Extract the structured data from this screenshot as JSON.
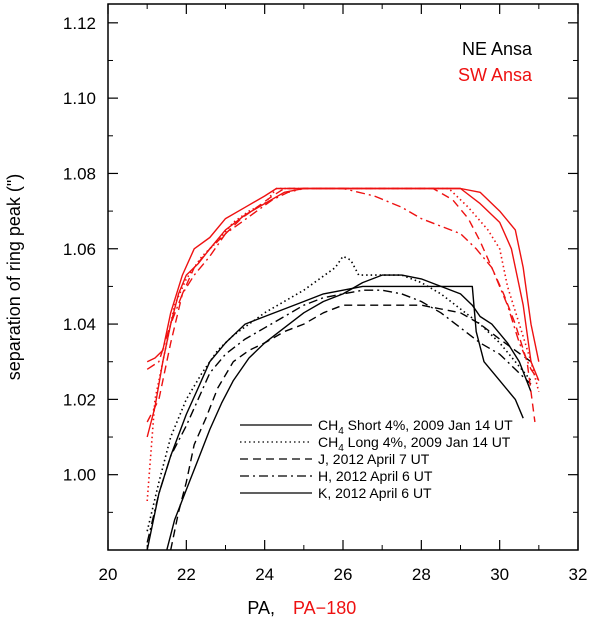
{
  "chart_data": {
    "type": "line",
    "xlabel": "PA,",
    "xlabel_red": "PA−180",
    "ylabel": "separation of ring peak (\")",
    "xlim": [
      20,
      32
    ],
    "ylim": [
      0.98,
      1.125
    ],
    "x_ticks": [
      20,
      22,
      24,
      26,
      28,
      30,
      32
    ],
    "y_ticks": [
      1.0,
      1.02,
      1.04,
      1.06,
      1.08,
      1.1,
      1.12
    ],
    "x_tick_labels": [
      "20",
      "22",
      "24",
      "26",
      "28",
      "30",
      "32"
    ],
    "y_tick_labels": [
      "1.00",
      "1.02",
      "1.04",
      "1.06",
      "1.08",
      "1.10",
      "1.12"
    ],
    "grid": false,
    "ansa_labels": [
      {
        "text": "NE Ansa",
        "color": "#000000"
      },
      {
        "text": "SW Ansa",
        "color": "#ee1111"
      }
    ],
    "legend": {
      "placement": "bottom-right",
      "entries": [
        {
          "main": "CH",
          "sub": "4",
          "rest": " Short 4%, 2009 Jan 14 UT",
          "dash": "solid"
        },
        {
          "main": "CH",
          "sub": "4",
          "rest": " Long 4%, 2009 Jan 14 UT",
          "dash": "dotted"
        },
        {
          "main": "J, 2012 April 7 UT",
          "sub": "",
          "rest": "",
          "dash": "dashed"
        },
        {
          "main": "H, 2012 April 6 UT",
          "sub": "",
          "rest": "",
          "dash": "dashdot"
        },
        {
          "main": "K, 2012 April 6 UT",
          "sub": "",
          "rest": "",
          "dash": "solid"
        }
      ]
    },
    "series": [
      {
        "ansa": "NE",
        "color": "#000000",
        "dash": "solid",
        "points": [
          [
            21.0,
            0.98
          ],
          [
            21.3,
            0.995
          ],
          [
            21.6,
            1.005
          ],
          [
            22.0,
            1.016
          ],
          [
            22.3,
            1.023
          ],
          [
            22.6,
            1.03
          ],
          [
            23.0,
            1.035
          ],
          [
            23.5,
            1.04
          ],
          [
            24.0,
            1.042
          ],
          [
            24.5,
            1.044
          ],
          [
            25.0,
            1.046
          ],
          [
            25.5,
            1.048
          ],
          [
            26.0,
            1.049
          ],
          [
            26.5,
            1.05
          ],
          [
            27.0,
            1.05
          ],
          [
            27.5,
            1.05
          ],
          [
            28.0,
            1.05
          ],
          [
            28.5,
            1.05
          ],
          [
            29.0,
            1.05
          ],
          [
            29.3,
            1.05
          ],
          [
            29.4,
            1.038
          ],
          [
            29.6,
            1.03
          ],
          [
            30.0,
            1.025
          ],
          [
            30.4,
            1.02
          ],
          [
            30.6,
            1.015
          ]
        ]
      },
      {
        "ansa": "NE",
        "color": "#000000",
        "dash": "dotted",
        "points": [
          [
            21.0,
            0.985
          ],
          [
            21.3,
            0.998
          ],
          [
            21.6,
            1.01
          ],
          [
            22.0,
            1.02
          ],
          [
            22.4,
            1.027
          ],
          [
            22.8,
            1.033
          ],
          [
            23.2,
            1.037
          ],
          [
            23.6,
            1.04
          ],
          [
            24.0,
            1.043
          ],
          [
            24.5,
            1.046
          ],
          [
            25.0,
            1.049
          ],
          [
            25.4,
            1.052
          ],
          [
            25.8,
            1.055
          ],
          [
            26.0,
            1.058
          ],
          [
            26.2,
            1.057
          ],
          [
            26.4,
            1.053
          ],
          [
            26.8,
            1.053
          ],
          [
            27.5,
            1.053
          ],
          [
            28.0,
            1.051
          ],
          [
            28.5,
            1.048
          ],
          [
            29.0,
            1.044
          ],
          [
            29.5,
            1.04
          ],
          [
            30.0,
            1.035
          ],
          [
            30.4,
            1.03
          ],
          [
            30.8,
            1.025
          ]
        ]
      },
      {
        "ansa": "NE",
        "color": "#000000",
        "dash": "dashed",
        "points": [
          [
            21.6,
            0.98
          ],
          [
            21.8,
            0.99
          ],
          [
            22.0,
            0.998
          ],
          [
            22.2,
            1.008
          ],
          [
            22.5,
            1.015
          ],
          [
            22.8,
            1.023
          ],
          [
            23.2,
            1.03
          ],
          [
            23.6,
            1.033
          ],
          [
            24.0,
            1.035
          ],
          [
            24.5,
            1.038
          ],
          [
            25.0,
            1.04
          ],
          [
            25.5,
            1.043
          ],
          [
            26.0,
            1.045
          ],
          [
            26.5,
            1.045
          ],
          [
            27.0,
            1.045
          ],
          [
            27.5,
            1.045
          ],
          [
            28.0,
            1.045
          ],
          [
            28.5,
            1.044
          ],
          [
            29.0,
            1.043
          ],
          [
            29.5,
            1.04
          ],
          [
            30.0,
            1.036
          ],
          [
            30.4,
            1.033
          ],
          [
            30.8,
            1.03
          ]
        ]
      },
      {
        "ansa": "NE",
        "color": "#000000",
        "dash": "dashdot",
        "points": [
          [
            21.0,
            0.982
          ],
          [
            21.3,
            0.995
          ],
          [
            21.6,
            1.005
          ],
          [
            22.0,
            1.013
          ],
          [
            22.3,
            1.02
          ],
          [
            22.6,
            1.027
          ],
          [
            23.0,
            1.032
          ],
          [
            23.5,
            1.036
          ],
          [
            24.0,
            1.039
          ],
          [
            24.5,
            1.042
          ],
          [
            25.0,
            1.045
          ],
          [
            25.5,
            1.047
          ],
          [
            26.0,
            1.048
          ],
          [
            26.5,
            1.049
          ],
          [
            27.0,
            1.049
          ],
          [
            27.5,
            1.048
          ],
          [
            28.0,
            1.046
          ],
          [
            28.5,
            1.043
          ],
          [
            29.0,
            1.039
          ],
          [
            29.5,
            1.035
          ],
          [
            30.0,
            1.032
          ],
          [
            30.4,
            1.028
          ],
          [
            30.8,
            1.024
          ]
        ]
      },
      {
        "ansa": "NE",
        "color": "#000000",
        "dash": "solid",
        "points": [
          [
            21.5,
            0.98
          ],
          [
            21.7,
            0.988
          ],
          [
            22.0,
            0.996
          ],
          [
            22.3,
            1.004
          ],
          [
            22.6,
            1.012
          ],
          [
            22.9,
            1.019
          ],
          [
            23.2,
            1.025
          ],
          [
            23.6,
            1.031
          ],
          [
            24.0,
            1.035
          ],
          [
            24.5,
            1.039
          ],
          [
            25.0,
            1.043
          ],
          [
            25.5,
            1.046
          ],
          [
            26.0,
            1.048
          ],
          [
            26.5,
            1.051
          ],
          [
            27.0,
            1.053
          ],
          [
            27.5,
            1.053
          ],
          [
            28.0,
            1.052
          ],
          [
            28.5,
            1.05
          ],
          [
            29.0,
            1.048
          ],
          [
            29.3,
            1.045
          ],
          [
            29.5,
            1.042
          ],
          [
            29.8,
            1.04
          ],
          [
            30.2,
            1.035
          ],
          [
            30.5,
            1.03
          ],
          [
            30.8,
            1.022
          ]
        ]
      },
      {
        "ansa": "SW",
        "color": "#ee1111",
        "dash": "solid",
        "points": [
          [
            21.0,
            1.03
          ],
          [
            21.2,
            1.031
          ],
          [
            21.4,
            1.033
          ],
          [
            21.6,
            1.043
          ],
          [
            21.9,
            1.053
          ],
          [
            22.2,
            1.06
          ],
          [
            22.6,
            1.063
          ],
          [
            23.0,
            1.068
          ],
          [
            23.5,
            1.071
          ],
          [
            24.0,
            1.074
          ],
          [
            24.3,
            1.076
          ],
          [
            26.0,
            1.076
          ],
          [
            28.0,
            1.076
          ],
          [
            29.0,
            1.076
          ],
          [
            29.5,
            1.072
          ],
          [
            30.0,
            1.067
          ],
          [
            30.3,
            1.06
          ],
          [
            30.5,
            1.05
          ],
          [
            30.6,
            1.045
          ],
          [
            30.8,
            1.03
          ],
          [
            31.0,
            1.025
          ]
        ]
      },
      {
        "ansa": "SW",
        "color": "#ee1111",
        "dash": "dotted",
        "points": [
          [
            21.0,
            0.993
          ],
          [
            21.2,
            1.02
          ],
          [
            21.4,
            1.03
          ],
          [
            21.7,
            1.045
          ],
          [
            22.0,
            1.052
          ],
          [
            22.4,
            1.058
          ],
          [
            22.8,
            1.062
          ],
          [
            23.2,
            1.067
          ],
          [
            23.6,
            1.07
          ],
          [
            24.0,
            1.072
          ],
          [
            24.3,
            1.076
          ],
          [
            26.0,
            1.076
          ],
          [
            28.0,
            1.076
          ],
          [
            28.7,
            1.076
          ],
          [
            29.2,
            1.071
          ],
          [
            29.7,
            1.065
          ],
          [
            30.0,
            1.06
          ],
          [
            30.2,
            1.05
          ],
          [
            30.5,
            1.04
          ],
          [
            30.8,
            1.03
          ],
          [
            31.0,
            1.022
          ]
        ]
      },
      {
        "ansa": "SW",
        "color": "#ee1111",
        "dash": "dashed",
        "points": [
          [
            21.0,
            1.014
          ],
          [
            21.3,
            1.02
          ],
          [
            21.6,
            1.035
          ],
          [
            21.9,
            1.048
          ],
          [
            22.2,
            1.055
          ],
          [
            22.6,
            1.06
          ],
          [
            23.0,
            1.064
          ],
          [
            23.4,
            1.068
          ],
          [
            23.8,
            1.071
          ],
          [
            24.2,
            1.074
          ],
          [
            24.5,
            1.076
          ],
          [
            26.0,
            1.076
          ],
          [
            27.5,
            1.076
          ],
          [
            28.3,
            1.076
          ],
          [
            28.8,
            1.073
          ],
          [
            29.2,
            1.068
          ],
          [
            29.5,
            1.062
          ],
          [
            29.8,
            1.055
          ],
          [
            30.1,
            1.048
          ],
          [
            30.4,
            1.04
          ],
          [
            30.7,
            1.03
          ],
          [
            30.9,
            1.014
          ]
        ]
      },
      {
        "ansa": "SW",
        "color": "#ee1111",
        "dash": "dashdot",
        "points": [
          [
            21.0,
            1.028
          ],
          [
            21.3,
            1.03
          ],
          [
            21.6,
            1.04
          ],
          [
            21.9,
            1.048
          ],
          [
            22.2,
            1.053
          ],
          [
            22.6,
            1.058
          ],
          [
            23.0,
            1.064
          ],
          [
            23.4,
            1.067
          ],
          [
            23.8,
            1.07
          ],
          [
            24.2,
            1.073
          ],
          [
            24.6,
            1.075
          ],
          [
            25.0,
            1.076
          ],
          [
            26.0,
            1.076
          ],
          [
            26.8,
            1.074
          ],
          [
            27.5,
            1.071
          ],
          [
            28.0,
            1.068
          ],
          [
            28.5,
            1.066
          ],
          [
            29.0,
            1.064
          ],
          [
            29.4,
            1.06
          ],
          [
            29.8,
            1.055
          ],
          [
            30.2,
            1.045
          ],
          [
            30.5,
            1.035
          ],
          [
            30.8,
            1.028
          ],
          [
            31.0,
            1.025
          ]
        ]
      },
      {
        "ansa": "SW",
        "color": "#ee1111",
        "dash": "solid",
        "points": [
          [
            21.0,
            1.01
          ],
          [
            21.2,
            1.018
          ],
          [
            21.4,
            1.03
          ],
          [
            21.6,
            1.04
          ],
          [
            21.8,
            1.048
          ],
          [
            22.0,
            1.053
          ],
          [
            22.3,
            1.056
          ],
          [
            22.6,
            1.06
          ],
          [
            23.0,
            1.065
          ],
          [
            23.5,
            1.069
          ],
          [
            24.0,
            1.072
          ],
          [
            24.5,
            1.075
          ],
          [
            25.0,
            1.076
          ],
          [
            26.0,
            1.076
          ],
          [
            28.0,
            1.076
          ],
          [
            29.0,
            1.076
          ],
          [
            29.5,
            1.075
          ],
          [
            30.0,
            1.07
          ],
          [
            30.4,
            1.065
          ],
          [
            30.6,
            1.055
          ],
          [
            30.8,
            1.04
          ],
          [
            31.0,
            1.03
          ]
        ]
      }
    ]
  }
}
